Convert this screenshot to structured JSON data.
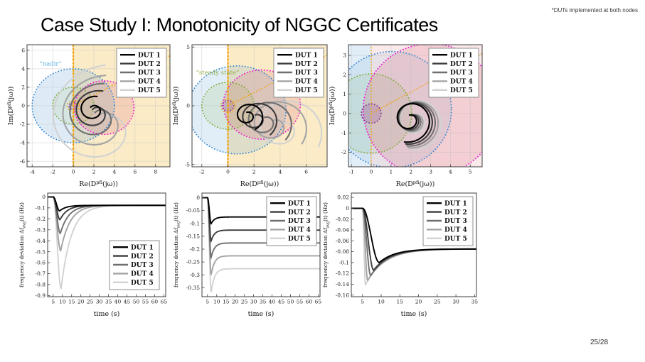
{
  "slide": {
    "title": "Case Study I: Monotonicity of NGGC Certificates",
    "footnote": "*DUTs implemented at both nodes",
    "page_number": "25/28"
  },
  "legend": {
    "entries": [
      {
        "label": "DUT 1",
        "color": "#000000"
      },
      {
        "label": "DUT 2",
        "color": "#3c3c3c"
      },
      {
        "label": "DUT 3",
        "color": "#6f6f6f"
      },
      {
        "label": "DUT 4",
        "color": "#a3a3a3"
      },
      {
        "label": "DUT 5",
        "color": "#d2d2d2"
      }
    ]
  },
  "chart_data": [
    {
      "kind": "nyquist",
      "type": "line",
      "title": "Nyquist locus with nadir certificate regions",
      "xlabel_parts": [
        {
          "t": "Re(D"
        },
        {
          "t": "pf",
          "sup": true
        },
        {
          "t": "i",
          "sub": true
        },
        {
          "t": "(jω))"
        }
      ],
      "ylabel_parts": [
        {
          "t": "Im(D"
        },
        {
          "t": "pf",
          "sup": true
        },
        {
          "t": "i",
          "sub": true
        },
        {
          "t": "(jω))"
        }
      ],
      "xlim": [
        -4.5,
        9.4
      ],
      "ylim": [
        -6.6,
        6.6
      ],
      "xticks": [
        -4,
        -2,
        0,
        2,
        4,
        6,
        8
      ],
      "yticks": [
        -6,
        -4,
        -2,
        0,
        2,
        4,
        6
      ],
      "grid": true,
      "legend_pos": "tr",
      "annotation": {
        "text": "“nadir”",
        "x": -3.3,
        "y": 4.35,
        "color": "#58b0e3"
      },
      "regions": [
        {
          "shape": "halfplane",
          "side": "x>",
          "at": 0,
          "color": "#f0b428",
          "alpha": 0.26
        }
      ],
      "circles": [
        {
          "cx": 0,
          "cy": 0,
          "r": 4.0,
          "stroke": "#2f86d4",
          "fill": "#5b9bd5",
          "fill_alpha": 0.2
        },
        {
          "cx": 0,
          "cy": 0,
          "r": 2.0,
          "stroke": "#7bab35",
          "fill": "#9dc16b",
          "fill_alpha": 0.15
        },
        {
          "cx": 3.0,
          "cy": -0.2,
          "r": 2.9,
          "stroke": "#ef0fd4",
          "fill": "#d86f7e",
          "fill_alpha": 0.22
        },
        {
          "cx": 0,
          "cy": 0,
          "r": 0.6,
          "stroke": "#f2a20d"
        },
        {
          "cx": 0,
          "cy": 0,
          "r": 0.42,
          "stroke": "#7e2f8e",
          "fill": "#7e2f8e",
          "fill_alpha": 0.18
        }
      ],
      "lines": [
        {
          "x1": 0,
          "y1": -6.6,
          "x2": 0,
          "y2": 6.6,
          "color": "#f2a20d",
          "w": 2.2,
          "dash": "2 3"
        },
        {
          "x1": 0,
          "y1": 0,
          "x2": 9.4,
          "y2": 5.4,
          "color": "#f2a20d",
          "w": 1.8,
          "dash": "dot"
        }
      ],
      "spirals": [
        {
          "name": "DUT 1",
          "color": "#000000",
          "cx": 1.95,
          "cy": -0.45,
          "r0": 0.4,
          "r1": 1.5,
          "turns": 1.15,
          "start_deg": 130
        },
        {
          "name": "DUT 2",
          "color": "#3c3c3c",
          "cx": 2.15,
          "cy": -0.75,
          "r0": 0.45,
          "r1": 2.45,
          "turns": 1.15,
          "start_deg": 127
        },
        {
          "name": "DUT 3",
          "color": "#6f6f6f",
          "cx": 2.4,
          "cy": -1.15,
          "r0": 0.5,
          "r1": 3.6,
          "turns": 1.12,
          "start_deg": 124
        },
        {
          "name": "DUT 4",
          "color": "#a3a3a3",
          "cx": 2.7,
          "cy": -1.6,
          "r0": 0.55,
          "r1": 4.9,
          "turns": 1.1,
          "start_deg": 121
        },
        {
          "name": "DUT 5",
          "color": "#d2d2d2",
          "cx": 3.0,
          "cy": -2.1,
          "r0": 0.6,
          "r1": 6.5,
          "turns": 1.08,
          "start_deg": 118
        }
      ]
    },
    {
      "kind": "nyquist",
      "type": "line",
      "title": "Nyquist locus with steady-state certificate regions",
      "xlabel_parts": [
        {
          "t": "Re(D"
        },
        {
          "t": "pf",
          "sup": true
        },
        {
          "t": "i",
          "sub": true
        },
        {
          "t": "(jω))"
        }
      ],
      "ylabel_parts": [
        {
          "t": "Im(D"
        },
        {
          "t": "pf",
          "sup": true
        },
        {
          "t": "i",
          "sub": true
        },
        {
          "t": "(jω))"
        }
      ],
      "xlim": [
        -2.75,
        7.6
      ],
      "ylim": [
        -5.2,
        5.2
      ],
      "xticks": [
        -2,
        0,
        2,
        4,
        6
      ],
      "yticks": [
        -5,
        0,
        5
      ],
      "grid": true,
      "legend_pos": "tr",
      "annotation": {
        "text": "“steady state”",
        "x": -2.45,
        "y": 2.65,
        "color": "#8fae4a"
      },
      "regions": [
        {
          "shape": "halfplane",
          "side": "x>",
          "at": 0,
          "color": "#f0b428",
          "alpha": 0.26
        }
      ],
      "circles": [
        {
          "cx": 0.7,
          "cy": -0.35,
          "r": 3.75,
          "stroke": "#2f86d4",
          "fill": "#5b9bd5",
          "fill_alpha": 0.18
        },
        {
          "cx": 0,
          "cy": 0,
          "r": 2.0,
          "stroke": "#7bab35",
          "fill": "#9dc16b",
          "fill_alpha": 0.18
        },
        {
          "cx": 2.6,
          "cy": 0.1,
          "r": 2.95,
          "stroke": "#ef0fd4",
          "fill": "#d86f7e",
          "fill_alpha": 0.22
        },
        {
          "cx": 0,
          "cy": 0,
          "r": 0.55,
          "stroke": "#f2a20d"
        },
        {
          "cx": 0,
          "cy": 0,
          "r": 0.45,
          "stroke": "#7e2f8e",
          "fill": "#7e2f8e",
          "fill_alpha": 0.18
        }
      ],
      "lines": [
        {
          "x1": 0,
          "y1": -5.2,
          "x2": 0,
          "y2": 5.2,
          "color": "#f2a20d",
          "w": 2.2,
          "dash": "2 3"
        },
        {
          "x1": 0,
          "y1": 0,
          "x2": 7.6,
          "y2": 4.3,
          "color": "#f2a20d",
          "w": 1.8,
          "dash": "dot"
        }
      ],
      "spirals": [
        {
          "name": "DUT 1",
          "color": "#000000",
          "cx": 1.5,
          "cy": -0.85,
          "r0": 0.3,
          "r1": 1.3,
          "turns": 1.45,
          "start_deg": 100
        },
        {
          "name": "DUT 2",
          "color": "#3c3c3c",
          "cx": 2.15,
          "cy": -1.1,
          "r0": 0.33,
          "r1": 1.75,
          "turns": 1.42,
          "start_deg": 100
        },
        {
          "name": "DUT 3",
          "color": "#6f6f6f",
          "cx": 2.85,
          "cy": -1.35,
          "r0": 0.36,
          "r1": 2.2,
          "turns": 1.4,
          "start_deg": 100
        },
        {
          "name": "DUT 4",
          "color": "#a3a3a3",
          "cx": 3.55,
          "cy": -1.65,
          "r0": 0.4,
          "r1": 2.65,
          "turns": 1.38,
          "start_deg": 100
        },
        {
          "name": "DUT 5",
          "color": "#d2d2d2",
          "cx": 4.25,
          "cy": -1.95,
          "r0": 0.44,
          "r1": 3.1,
          "turns": 1.36,
          "start_deg": 100
        }
      ]
    },
    {
      "kind": "nyquist",
      "type": "line",
      "title": "Nyquist locus, tight DUT grouping",
      "xlabel_parts": [
        {
          "t": "Re(D"
        },
        {
          "t": "pf",
          "sup": true
        },
        {
          "t": "i",
          "sub": true
        },
        {
          "t": "(jω))"
        }
      ],
      "ylabel_parts": [
        {
          "t": "Im(D"
        },
        {
          "t": "pf",
          "sup": true
        },
        {
          "t": "i",
          "sub": true
        },
        {
          "t": "(jω))"
        }
      ],
      "xlim": [
        -1.15,
        5.6
      ],
      "ylim": [
        -2.75,
        3.55
      ],
      "xticks": [
        -1,
        0,
        1,
        2,
        3,
        4,
        5
      ],
      "yticks": [
        -2,
        -1,
        0,
        1,
        2,
        3
      ],
      "grid": true,
      "legend_pos": "tr",
      "regions": [
        {
          "shape": "halfplane",
          "side": "x<",
          "at": 0,
          "color": "#5b9bd5",
          "alpha": 0.18
        },
        {
          "shape": "halfplane",
          "side": "x>",
          "at": 0,
          "color": "#e06060",
          "alpha": 0.13
        }
      ],
      "circles": [
        {
          "cx": 0,
          "cy": 0,
          "r": 2.05,
          "stroke": "#7bab35",
          "fill": "#9dc16b",
          "fill_alpha": 0.18
        },
        {
          "cx": 1.05,
          "cy": 0.2,
          "r": 3.0,
          "stroke": "#2f86d4",
          "fill": "#5b9bd5",
          "fill_alpha": 0.12
        },
        {
          "cx": 3.0,
          "cy": 0.2,
          "r": 3.4,
          "stroke": "#ef0fd4",
          "fill": "#d86f7e",
          "fill_alpha": 0.22
        },
        {
          "cx": 0,
          "cy": 0,
          "r": 0.5,
          "stroke": "#7e2f8e",
          "fill": "#7e2f8e",
          "fill_alpha": 0.18
        }
      ],
      "lines": [
        {
          "x1": 0,
          "y1": -2.75,
          "x2": 0,
          "y2": 3.55,
          "color": "#f2a20d",
          "w": 1.8,
          "dash": "dot"
        },
        {
          "x1": 0,
          "y1": 0,
          "x2": 5.6,
          "y2": 3.1,
          "color": "#f2a20d",
          "w": 1.8,
          "dash": "dot"
        }
      ],
      "spirals": [
        {
          "name": "DUT 1",
          "color": "#000000",
          "cx": 1.95,
          "cy": -0.3,
          "r0": 0.22,
          "r1": 1.2,
          "turns": 1.55,
          "start_deg": 95
        },
        {
          "name": "DUT 2",
          "color": "#3c3c3c",
          "cx": 2.03,
          "cy": -0.32,
          "r0": 0.24,
          "r1": 1.28,
          "turns": 1.55,
          "start_deg": 95
        },
        {
          "name": "DUT 3",
          "color": "#6f6f6f",
          "cx": 2.11,
          "cy": -0.34,
          "r0": 0.26,
          "r1": 1.36,
          "turns": 1.55,
          "start_deg": 95
        },
        {
          "name": "DUT 4",
          "color": "#a3a3a3",
          "cx": 2.19,
          "cy": -0.36,
          "r0": 0.28,
          "r1": 1.44,
          "turns": 1.55,
          "start_deg": 95
        },
        {
          "name": "DUT 5",
          "color": "#d2d2d2",
          "cx": 2.27,
          "cy": -0.38,
          "r0": 0.3,
          "r1": 1.52,
          "turns": 1.55,
          "start_deg": 95
        }
      ]
    },
    {
      "kind": "time",
      "type": "line",
      "title": "Frequency deviation, case 1",
      "xlabel_parts": [
        {
          "t": "time (s)"
        }
      ],
      "ylabel_parts": [
        {
          "t": "frequency deviation Δf"
        },
        {
          "t": "avg",
          "sub": true
        },
        {
          "t": "(t) (Hz)"
        }
      ],
      "xlim": [
        2,
        66
      ],
      "ylim": [
        -0.91,
        0.035
      ],
      "xticks": [
        5,
        10,
        15,
        20,
        25,
        30,
        35,
        40,
        45,
        50,
        55,
        60,
        65
      ],
      "yticks": [
        0,
        -0.1,
        -0.2,
        -0.3,
        -0.4,
        -0.5,
        -0.6,
        -0.7,
        -0.8,
        -0.9
      ],
      "grid": false,
      "legend_pos": "br",
      "series": [
        {
          "name": "DUT 1",
          "color": "#000000",
          "t0": 5,
          "dip": 0.128,
          "t_dip": 8.5,
          "settle": 0.077,
          "tau": 3.5
        },
        {
          "name": "DUT 2",
          "color": "#3c3c3c",
          "t0": 5,
          "dip": 0.208,
          "t_dip": 8.7,
          "settle": 0.077,
          "tau": 4.0
        },
        {
          "name": "DUT 3",
          "color": "#6f6f6f",
          "t0": 5,
          "dip": 0.332,
          "t_dip": 8.9,
          "settle": 0.077,
          "tau": 4.5
        },
        {
          "name": "DUT 4",
          "color": "#a3a3a3",
          "t0": 5,
          "dip": 0.49,
          "t_dip": 9.1,
          "settle": 0.077,
          "tau": 5.0
        },
        {
          "name": "DUT 5",
          "color": "#d2d2d2",
          "t0": 5,
          "dip": 0.835,
          "t_dip": 9.3,
          "settle": 0.077,
          "tau": 5.5
        }
      ]
    },
    {
      "kind": "time",
      "type": "line",
      "title": "Frequency deviation, case 2",
      "xlabel_parts": [
        {
          "t": "time (s)"
        }
      ],
      "ylabel_parts": [
        {
          "t": "frequency deviation Δf"
        },
        {
          "t": "avg",
          "sub": true
        },
        {
          "t": "(t) (Hz)"
        }
      ],
      "xlim": [
        2,
        66
      ],
      "ylim": [
        -0.385,
        0.018
      ],
      "xticks": [
        5,
        10,
        15,
        20,
        25,
        30,
        35,
        40,
        45,
        50,
        55,
        60,
        65
      ],
      "yticks": [
        0,
        -0.05,
        -0.1,
        -0.15,
        -0.2,
        -0.25,
        -0.3,
        -0.35
      ],
      "grid": false,
      "legend_pos": "tr",
      "series": [
        {
          "name": "DUT 1",
          "color": "#000000",
          "t0": 5,
          "dip": 0.101,
          "t_dip": 7.0,
          "settle": 0.075,
          "tau": 1.8
        },
        {
          "name": "DUT 2",
          "color": "#3c3c3c",
          "t0": 5,
          "dip": 0.168,
          "t_dip": 7.0,
          "settle": 0.126,
          "tau": 1.8
        },
        {
          "name": "DUT 3",
          "color": "#6f6f6f",
          "t0": 5,
          "dip": 0.232,
          "t_dip": 7.0,
          "settle": 0.176,
          "tau": 1.8
        },
        {
          "name": "DUT 4",
          "color": "#a3a3a3",
          "t0": 5,
          "dip": 0.3,
          "t_dip": 7.0,
          "settle": 0.226,
          "tau": 1.8
        },
        {
          "name": "DUT 5",
          "color": "#d2d2d2",
          "t0": 5,
          "dip": 0.367,
          "t_dip": 7.0,
          "settle": 0.276,
          "tau": 1.8
        }
      ]
    },
    {
      "kind": "time",
      "type": "line",
      "title": "Frequency deviation, case 3",
      "xlabel_parts": [
        {
          "t": "time (s)"
        }
      ],
      "ylabel_parts": [
        {
          "t": "frequency deviation Δf"
        },
        {
          "t": "avg",
          "sub": true
        },
        {
          "t": "(t) (Hz)"
        }
      ],
      "xlim": [
        2,
        35.5
      ],
      "ylim": [
        -0.163,
        0.028
      ],
      "xticks": [
        5,
        10,
        15,
        20,
        25,
        30,
        35
      ],
      "yticks": [
        0.02,
        0,
        -0.02,
        -0.04,
        -0.06,
        -0.08,
        -0.1,
        -0.12,
        -0.14,
        -0.16
      ],
      "grid": false,
      "legend_pos": "tr",
      "series": [
        {
          "name": "DUT 1",
          "color": "#000000",
          "t0": 5,
          "dip": 0.1,
          "t_dip": 9.5,
          "settle": 0.075,
          "tau": 4.2
        },
        {
          "name": "DUT 2",
          "color": "#3c3c3c",
          "t0": 5,
          "dip": 0.114,
          "t_dip": 8.0,
          "settle": 0.075,
          "tau": 4.4
        },
        {
          "name": "DUT 3",
          "color": "#6f6f6f",
          "t0": 5,
          "dip": 0.124,
          "t_dip": 7.2,
          "settle": 0.075,
          "tau": 4.6
        },
        {
          "name": "DUT 4",
          "color": "#a3a3a3",
          "t0": 5,
          "dip": 0.133,
          "t_dip": 6.4,
          "settle": 0.075,
          "tau": 4.8
        },
        {
          "name": "DUT 5",
          "color": "#d2d2d2",
          "t0": 5,
          "dip": 0.141,
          "t_dip": 5.8,
          "settle": 0.075,
          "tau": 5.0
        }
      ]
    }
  ]
}
